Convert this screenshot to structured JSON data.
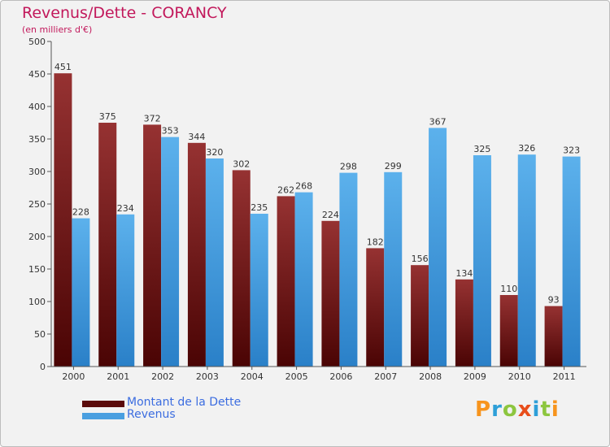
{
  "chart_data": {
    "type": "bar",
    "title": "Revenus/Dette - CORANCY",
    "subtitle": "(en milliers d'€)",
    "xlabel": "",
    "ylabel": "",
    "ylim": [
      0,
      500
    ],
    "yticks": [
      "0",
      "50",
      "100",
      "150",
      "200",
      "250",
      "300",
      "350",
      "400",
      "450",
      "500"
    ],
    "categories": [
      "2000",
      "2001",
      "2002",
      "2003",
      "2004",
      "2005",
      "2006",
      "2007",
      "2008",
      "2009",
      "2010",
      "2011"
    ],
    "grid": false,
    "legend_position": "bottom-left",
    "series": [
      {
        "name": "Montant de la Dette",
        "color": "#8b1a1a",
        "values": [
          451,
          375,
          372,
          344,
          302,
          262,
          224,
          182,
          156,
          134,
          110,
          93
        ]
      },
      {
        "name": "Revenus",
        "color": "#4a9fe0",
        "values": [
          228,
          234,
          353,
          320,
          235,
          268,
          298,
          299,
          367,
          325,
          326,
          323
        ]
      }
    ]
  },
  "logo": {
    "text": "Proxiti",
    "colors": [
      "#f7941d",
      "#2e9fd8",
      "#8dc63f",
      "#e84e1b",
      "#2e9fd8",
      "#8dc63f",
      "#f7941d"
    ]
  }
}
